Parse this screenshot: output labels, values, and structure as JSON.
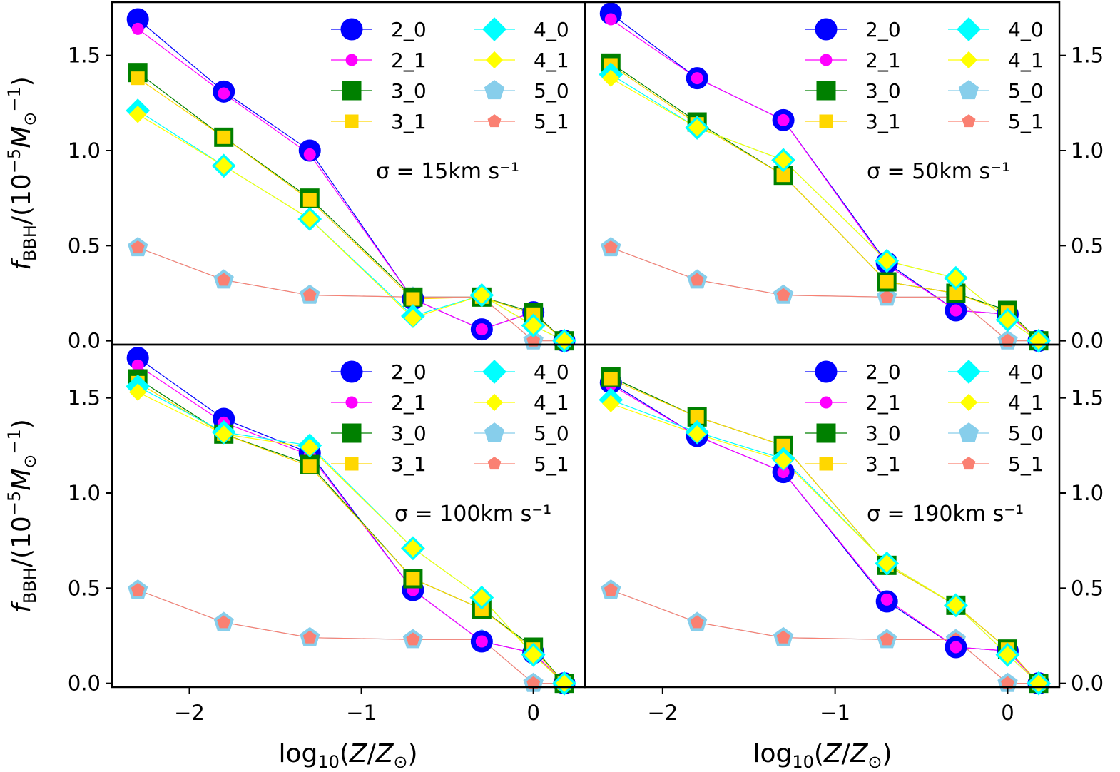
{
  "figure": {
    "ylabel": "f_BBH/(10^-5 M_⊙^-1)",
    "xlabel": "log10(Z/Z_⊙)"
  },
  "chart_data": {
    "type": "line",
    "x": [
      -2.3,
      -1.8,
      -1.3,
      -0.7,
      -0.3,
      0.0,
      0.18
    ],
    "xlim": [
      -2.45,
      0.3
    ],
    "ylim": [
      -0.02,
      1.78
    ],
    "xticks": [
      -2,
      -1,
      0
    ],
    "xtick_labels": [
      "−2",
      "−1",
      "0"
    ],
    "yticks": [
      0.0,
      0.5,
      1.0,
      1.5
    ],
    "ytick_labels": [
      "0.0",
      "0.5",
      "1.0",
      "1.5"
    ],
    "legend": {
      "placement": "top-right",
      "ncol": 2
    },
    "series_styles": [
      {
        "name": "2_0",
        "color": "#0000ff",
        "marker": "circle",
        "size": "large"
      },
      {
        "name": "2_1",
        "color": "#ff00ff",
        "marker": "circle",
        "size": "small"
      },
      {
        "name": "3_0",
        "color": "#008000",
        "marker": "square",
        "size": "large"
      },
      {
        "name": "3_1",
        "color": "#ffd700",
        "marker": "square",
        "size": "small"
      },
      {
        "name": "4_0",
        "color": "#00ffff",
        "marker": "diamond",
        "size": "large"
      },
      {
        "name": "4_1",
        "color": "#ffff00",
        "marker": "diamond",
        "size": "small"
      },
      {
        "name": "5_0",
        "color": "#87ceeb",
        "marker": "pentagon",
        "size": "large"
      },
      {
        "name": "5_1",
        "color": "#fa8072",
        "marker": "pentagon",
        "size": "small"
      }
    ],
    "panels": [
      {
        "annotation": "σ = 15km s⁻¹",
        "series": [
          {
            "name": "2_0",
            "values": [
              1.69,
              1.31,
              1.0,
              0.22,
              0.06,
              0.15,
              0.0
            ]
          },
          {
            "name": "2_1",
            "values": [
              1.64,
              1.3,
              0.98,
              0.22,
              0.06,
              0.15,
              0.0
            ]
          },
          {
            "name": "3_0",
            "values": [
              1.41,
              1.07,
              0.75,
              0.23,
              0.23,
              0.15,
              0.0
            ]
          },
          {
            "name": "3_1",
            "values": [
              1.38,
              1.07,
              0.74,
              0.22,
              0.23,
              0.14,
              0.0
            ]
          },
          {
            "name": "4_0",
            "values": [
              1.21,
              0.92,
              0.64,
              0.13,
              0.24,
              0.08,
              0.0
            ]
          },
          {
            "name": "4_1",
            "values": [
              1.19,
              0.92,
              0.64,
              0.12,
              0.24,
              0.08,
              0.0
            ]
          },
          {
            "name": "5_0",
            "values": [
              0.49,
              0.32,
              0.24,
              0.23,
              0.23,
              0.0,
              0.0
            ]
          },
          {
            "name": "5_1",
            "values": [
              0.49,
              0.32,
              0.24,
              0.23,
              0.23,
              0.0,
              0.0
            ]
          }
        ]
      },
      {
        "annotation": "σ = 50km s⁻¹",
        "series": [
          {
            "name": "2_0",
            "values": [
              1.72,
              1.38,
              1.16,
              0.41,
              0.16,
              0.14,
              0.0
            ]
          },
          {
            "name": "2_1",
            "values": [
              1.69,
              1.38,
              1.16,
              0.4,
              0.16,
              0.14,
              0.0
            ]
          },
          {
            "name": "3_0",
            "values": [
              1.46,
              1.15,
              0.87,
              0.31,
              0.25,
              0.16,
              0.0
            ]
          },
          {
            "name": "3_1",
            "values": [
              1.45,
              1.14,
              0.87,
              0.31,
              0.25,
              0.15,
              0.0
            ]
          },
          {
            "name": "4_0",
            "values": [
              1.4,
              1.12,
              0.95,
              0.42,
              0.33,
              0.11,
              0.0
            ]
          },
          {
            "name": "4_1",
            "values": [
              1.38,
              1.12,
              0.95,
              0.42,
              0.33,
              0.11,
              0.0
            ]
          },
          {
            "name": "5_0",
            "values": [
              0.49,
              0.32,
              0.24,
              0.23,
              0.23,
              0.0,
              0.0
            ]
          },
          {
            "name": "5_1",
            "values": [
              0.49,
              0.32,
              0.24,
              0.23,
              0.23,
              0.0,
              0.0
            ]
          }
        ]
      },
      {
        "annotation": "σ = 100km s⁻¹",
        "series": [
          {
            "name": "2_0",
            "values": [
              1.71,
              1.39,
              1.21,
              0.49,
              0.22,
              0.16,
              0.0
            ]
          },
          {
            "name": "2_1",
            "values": [
              1.67,
              1.37,
              1.2,
              0.49,
              0.22,
              0.16,
              0.0
            ]
          },
          {
            "name": "3_0",
            "values": [
              1.6,
              1.31,
              1.15,
              0.55,
              0.39,
              0.19,
              0.0
            ]
          },
          {
            "name": "3_1",
            "values": [
              1.58,
              1.31,
              1.14,
              0.55,
              0.39,
              0.18,
              0.0
            ]
          },
          {
            "name": "4_0",
            "values": [
              1.56,
              1.32,
              1.25,
              0.71,
              0.45,
              0.15,
              0.0
            ]
          },
          {
            "name": "4_1",
            "values": [
              1.53,
              1.31,
              1.24,
              0.71,
              0.45,
              0.15,
              0.0
            ]
          },
          {
            "name": "5_0",
            "values": [
              0.49,
              0.32,
              0.24,
              0.23,
              0.23,
              0.0,
              0.0
            ]
          },
          {
            "name": "5_1",
            "values": [
              0.49,
              0.32,
              0.24,
              0.23,
              0.23,
              0.0,
              0.0
            ]
          }
        ]
      },
      {
        "annotation": "σ = 190km s⁻¹",
        "series": [
          {
            "name": "2_0",
            "values": [
              1.58,
              1.3,
              1.11,
              0.43,
              0.19,
              0.17,
              0.0
            ]
          },
          {
            "name": "2_1",
            "values": [
              1.57,
              1.3,
              1.11,
              0.44,
              0.19,
              0.17,
              0.0
            ]
          },
          {
            "name": "3_0",
            "values": [
              1.61,
              1.4,
              1.25,
              0.62,
              0.41,
              0.18,
              0.0
            ]
          },
          {
            "name": "3_1",
            "values": [
              1.6,
              1.4,
              1.25,
              0.62,
              0.41,
              0.18,
              0.0
            ]
          },
          {
            "name": "4_0",
            "values": [
              1.49,
              1.32,
              1.18,
              0.63,
              0.41,
              0.15,
              0.0
            ]
          },
          {
            "name": "4_1",
            "values": [
              1.47,
              1.31,
              1.17,
              0.63,
              0.41,
              0.15,
              0.0
            ]
          },
          {
            "name": "5_0",
            "values": [
              0.49,
              0.32,
              0.24,
              0.23,
              0.23,
              0.0,
              0.0
            ]
          },
          {
            "name": "5_1",
            "values": [
              0.49,
              0.32,
              0.24,
              0.23,
              0.23,
              0.0,
              0.0
            ]
          }
        ]
      }
    ]
  }
}
